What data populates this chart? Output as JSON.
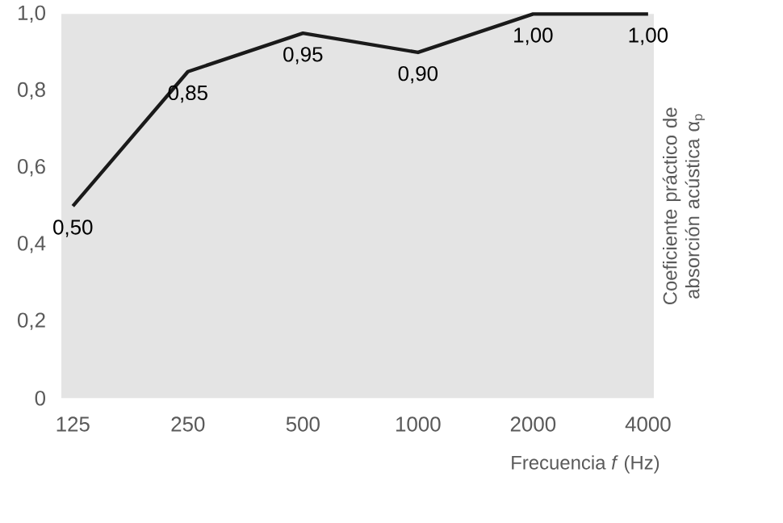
{
  "chart_data": {
    "type": "line",
    "xlabel": "Frecuencia *f* (Hz)",
    "ylabel": "Coeficiente práctico de absorción acústica α$_{p}$",
    "categories": [
      "125",
      "250",
      "500",
      "1000",
      "2000",
      "4000"
    ],
    "series": [
      {
        "color": "#1a1a1a",
        "values": [
          0.5,
          0.85,
          0.95,
          0.9,
          1.0,
          1.0
        ],
        "value_labels": [
          "0,50",
          "0,85",
          "0,95",
          "0,90",
          "1,00",
          "1,00"
        ]
      }
    ],
    "ylim": [
      0,
      1.0
    ],
    "yticks": [
      {
        "value": 0,
        "label": "0"
      },
      {
        "value": 0.2,
        "label": "0,2"
      },
      {
        "value": 0.4,
        "label": "0,4"
      },
      {
        "value": 0.6,
        "label": "0,6"
      },
      {
        "value": 0.8,
        "label": "0,8"
      },
      {
        "value": 1.0,
        "label": "1,0"
      }
    ],
    "marker": "none",
    "line_style": "solid"
  }
}
